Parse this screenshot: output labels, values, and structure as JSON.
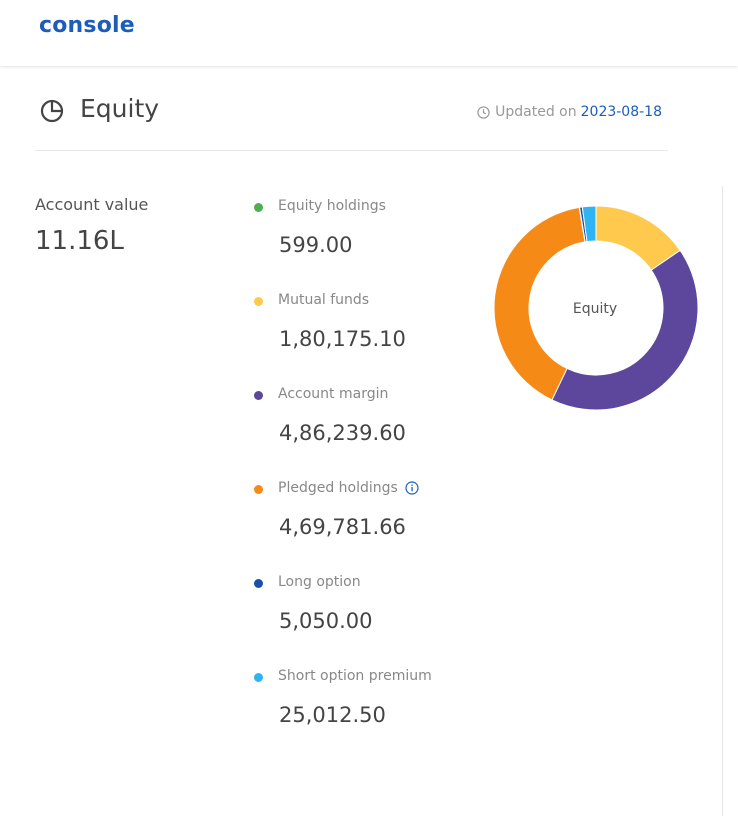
{
  "app": {
    "logo": "console"
  },
  "section": {
    "title": "Equity",
    "updated_prefix": "Updated on",
    "updated_date": "2023-08-18"
  },
  "account": {
    "label": "Account value",
    "value": "11.16L"
  },
  "items": [
    {
      "label": "Equity holdings",
      "value": "599.00",
      "color": "#4caf50"
    },
    {
      "label": "Mutual funds",
      "value": "1,80,175.10",
      "color": "#ffc94d"
    },
    {
      "label": "Account margin",
      "value": "4,86,239.60",
      "color": "#5c479c"
    },
    {
      "label": "Pledged holdings",
      "value": "4,69,781.66",
      "color": "#f58a16"
    },
    {
      "label": "Long option",
      "value": "5,050.00",
      "color": "#1a50a8"
    },
    {
      "label": "Short option premium",
      "value": "25,012.50",
      "color": "#2fb3f2"
    }
  ],
  "chart_data": {
    "type": "pie",
    "center_label": "Equity",
    "series": [
      {
        "name": "Mutual funds",
        "value": 180175.1,
        "color": "#ffc94d"
      },
      {
        "name": "Account margin",
        "value": 486239.6,
        "color": "#5c479c"
      },
      {
        "name": "Pledged holdings",
        "value": 469781.66,
        "color": "#f58a16"
      },
      {
        "name": "Equity holdings",
        "value": 599.0,
        "color": "#4caf50"
      },
      {
        "name": "Long option",
        "value": 5050.0,
        "color": "#1a50a8"
      },
      {
        "name": "Short option premium",
        "value": 25012.5,
        "color": "#2fb3f2"
      }
    ]
  }
}
